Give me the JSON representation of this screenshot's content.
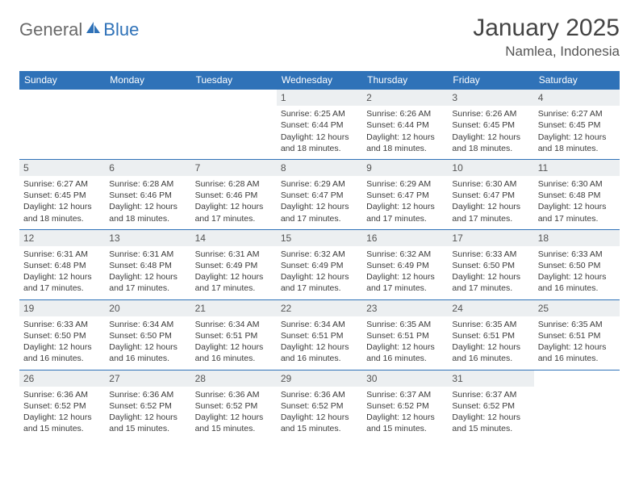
{
  "logo": {
    "part1": "General",
    "part2": "Blue"
  },
  "header": {
    "month_title": "January 2025",
    "location": "Namlea, Indonesia"
  },
  "colors": {
    "header_bg": "#2f72b8",
    "header_text": "#ffffff",
    "daynum_bg": "#eceff1",
    "border": "#2f72b8",
    "body_text": "#3b3b3b",
    "logo_gray": "#6a6a6a",
    "logo_blue": "#2f72b8"
  },
  "daynames": [
    "Sunday",
    "Monday",
    "Tuesday",
    "Wednesday",
    "Thursday",
    "Friday",
    "Saturday"
  ],
  "weeks": [
    [
      null,
      null,
      null,
      {
        "n": "1",
        "sr": "6:25 AM",
        "ss": "6:44 PM",
        "dl": "12 hours and 18 minutes."
      },
      {
        "n": "2",
        "sr": "6:26 AM",
        "ss": "6:44 PM",
        "dl": "12 hours and 18 minutes."
      },
      {
        "n": "3",
        "sr": "6:26 AM",
        "ss": "6:45 PM",
        "dl": "12 hours and 18 minutes."
      },
      {
        "n": "4",
        "sr": "6:27 AM",
        "ss": "6:45 PM",
        "dl": "12 hours and 18 minutes."
      }
    ],
    [
      {
        "n": "5",
        "sr": "6:27 AM",
        "ss": "6:45 PM",
        "dl": "12 hours and 18 minutes."
      },
      {
        "n": "6",
        "sr": "6:28 AM",
        "ss": "6:46 PM",
        "dl": "12 hours and 18 minutes."
      },
      {
        "n": "7",
        "sr": "6:28 AM",
        "ss": "6:46 PM",
        "dl": "12 hours and 17 minutes."
      },
      {
        "n": "8",
        "sr": "6:29 AM",
        "ss": "6:47 PM",
        "dl": "12 hours and 17 minutes."
      },
      {
        "n": "9",
        "sr": "6:29 AM",
        "ss": "6:47 PM",
        "dl": "12 hours and 17 minutes."
      },
      {
        "n": "10",
        "sr": "6:30 AM",
        "ss": "6:47 PM",
        "dl": "12 hours and 17 minutes."
      },
      {
        "n": "11",
        "sr": "6:30 AM",
        "ss": "6:48 PM",
        "dl": "12 hours and 17 minutes."
      }
    ],
    [
      {
        "n": "12",
        "sr": "6:31 AM",
        "ss": "6:48 PM",
        "dl": "12 hours and 17 minutes."
      },
      {
        "n": "13",
        "sr": "6:31 AM",
        "ss": "6:48 PM",
        "dl": "12 hours and 17 minutes."
      },
      {
        "n": "14",
        "sr": "6:31 AM",
        "ss": "6:49 PM",
        "dl": "12 hours and 17 minutes."
      },
      {
        "n": "15",
        "sr": "6:32 AM",
        "ss": "6:49 PM",
        "dl": "12 hours and 17 minutes."
      },
      {
        "n": "16",
        "sr": "6:32 AM",
        "ss": "6:49 PM",
        "dl": "12 hours and 17 minutes."
      },
      {
        "n": "17",
        "sr": "6:33 AM",
        "ss": "6:50 PM",
        "dl": "12 hours and 17 minutes."
      },
      {
        "n": "18",
        "sr": "6:33 AM",
        "ss": "6:50 PM",
        "dl": "12 hours and 16 minutes."
      }
    ],
    [
      {
        "n": "19",
        "sr": "6:33 AM",
        "ss": "6:50 PM",
        "dl": "12 hours and 16 minutes."
      },
      {
        "n": "20",
        "sr": "6:34 AM",
        "ss": "6:50 PM",
        "dl": "12 hours and 16 minutes."
      },
      {
        "n": "21",
        "sr": "6:34 AM",
        "ss": "6:51 PM",
        "dl": "12 hours and 16 minutes."
      },
      {
        "n": "22",
        "sr": "6:34 AM",
        "ss": "6:51 PM",
        "dl": "12 hours and 16 minutes."
      },
      {
        "n": "23",
        "sr": "6:35 AM",
        "ss": "6:51 PM",
        "dl": "12 hours and 16 minutes."
      },
      {
        "n": "24",
        "sr": "6:35 AM",
        "ss": "6:51 PM",
        "dl": "12 hours and 16 minutes."
      },
      {
        "n": "25",
        "sr": "6:35 AM",
        "ss": "6:51 PM",
        "dl": "12 hours and 16 minutes."
      }
    ],
    [
      {
        "n": "26",
        "sr": "6:36 AM",
        "ss": "6:52 PM",
        "dl": "12 hours and 15 minutes."
      },
      {
        "n": "27",
        "sr": "6:36 AM",
        "ss": "6:52 PM",
        "dl": "12 hours and 15 minutes."
      },
      {
        "n": "28",
        "sr": "6:36 AM",
        "ss": "6:52 PM",
        "dl": "12 hours and 15 minutes."
      },
      {
        "n": "29",
        "sr": "6:36 AM",
        "ss": "6:52 PM",
        "dl": "12 hours and 15 minutes."
      },
      {
        "n": "30",
        "sr": "6:37 AM",
        "ss": "6:52 PM",
        "dl": "12 hours and 15 minutes."
      },
      {
        "n": "31",
        "sr": "6:37 AM",
        "ss": "6:52 PM",
        "dl": "12 hours and 15 minutes."
      },
      null
    ]
  ],
  "labels": {
    "sunrise": "Sunrise: ",
    "sunset": "Sunset: ",
    "daylight": "Daylight: "
  }
}
